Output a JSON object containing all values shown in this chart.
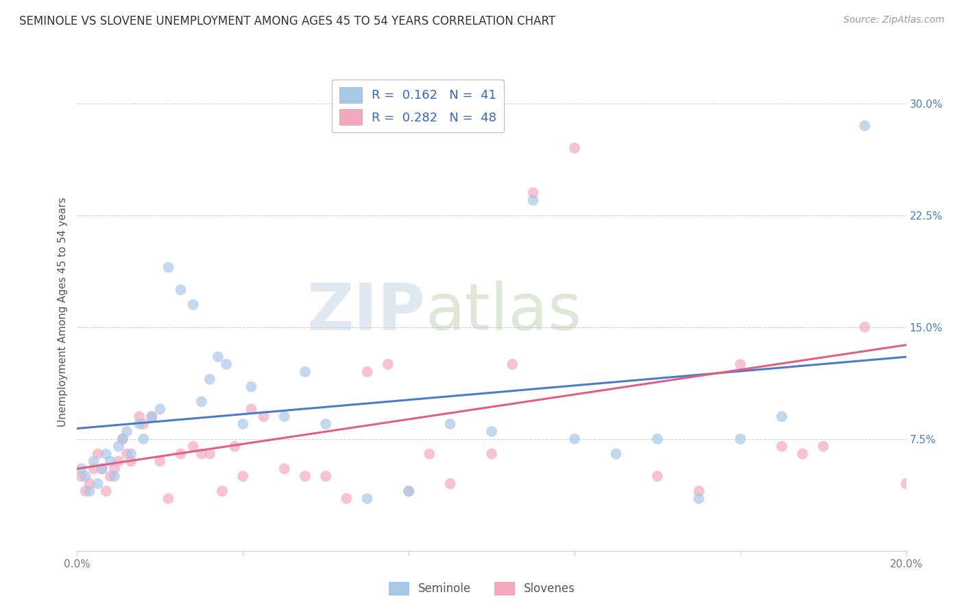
{
  "title": "SEMINOLE VS SLOVENE UNEMPLOYMENT AMONG AGES 45 TO 54 YEARS CORRELATION CHART",
  "source_text": "Source: ZipAtlas.com",
  "ylabel": "Unemployment Among Ages 45 to 54 years",
  "xlim": [
    0.0,
    0.2
  ],
  "ylim": [
    0.0,
    0.32
  ],
  "xtick_positions": [
    0.0,
    0.04,
    0.08,
    0.12,
    0.16,
    0.2
  ],
  "xticklabels": [
    "0.0%",
    "",
    "",
    "",
    "",
    "20.0%"
  ],
  "ytick_positions": [
    0.0,
    0.075,
    0.15,
    0.225,
    0.3
  ],
  "yticklabels": [
    "",
    "7.5%",
    "15.0%",
    "22.5%",
    "30.0%"
  ],
  "seminole_R": 0.162,
  "seminole_N": 41,
  "slovene_R": 0.282,
  "slovene_N": 48,
  "seminole_color": "#a8c8e8",
  "slovene_color": "#f4a8be",
  "seminole_line_color": "#4a7cc7",
  "slovene_line_color": "#e06080",
  "background_color": "#ffffff",
  "grid_color": "#cccccc",
  "watermark_zip": "ZIP",
  "watermark_atlas": "atlas",
  "legend_label_1": "Seminole",
  "legend_label_2": "Slovenes",
  "title_color": "#333333",
  "source_color": "#999999",
  "ylabel_color": "#555555",
  "tick_color": "#777777",
  "right_tick_color": "#4a7cc7",
  "seminole_x": [
    0.001,
    0.002,
    0.003,
    0.004,
    0.005,
    0.006,
    0.007,
    0.008,
    0.009,
    0.01,
    0.011,
    0.012,
    0.013,
    0.015,
    0.016,
    0.018,
    0.02,
    0.022,
    0.025,
    0.028,
    0.03,
    0.032,
    0.034,
    0.036,
    0.04,
    0.042,
    0.05,
    0.055,
    0.06,
    0.07,
    0.08,
    0.09,
    0.1,
    0.11,
    0.12,
    0.13,
    0.14,
    0.15,
    0.16,
    0.17,
    0.19
  ],
  "seminole_y": [
    0.055,
    0.05,
    0.04,
    0.06,
    0.045,
    0.055,
    0.065,
    0.06,
    0.05,
    0.07,
    0.075,
    0.08,
    0.065,
    0.085,
    0.075,
    0.09,
    0.095,
    0.19,
    0.175,
    0.165,
    0.1,
    0.115,
    0.13,
    0.125,
    0.085,
    0.11,
    0.09,
    0.12,
    0.085,
    0.035,
    0.04,
    0.085,
    0.08,
    0.235,
    0.075,
    0.065,
    0.075,
    0.035,
    0.075,
    0.09,
    0.285
  ],
  "slovene_x": [
    0.001,
    0.002,
    0.003,
    0.004,
    0.005,
    0.006,
    0.007,
    0.008,
    0.009,
    0.01,
    0.011,
    0.012,
    0.013,
    0.015,
    0.016,
    0.018,
    0.02,
    0.022,
    0.025,
    0.028,
    0.03,
    0.032,
    0.035,
    0.038,
    0.04,
    0.042,
    0.045,
    0.05,
    0.055,
    0.06,
    0.065,
    0.07,
    0.075,
    0.08,
    0.085,
    0.09,
    0.1,
    0.105,
    0.11,
    0.12,
    0.14,
    0.15,
    0.16,
    0.17,
    0.175,
    0.18,
    0.19,
    0.2
  ],
  "slovene_y": [
    0.05,
    0.04,
    0.045,
    0.055,
    0.065,
    0.055,
    0.04,
    0.05,
    0.055,
    0.06,
    0.075,
    0.065,
    0.06,
    0.09,
    0.085,
    0.09,
    0.06,
    0.035,
    0.065,
    0.07,
    0.065,
    0.065,
    0.04,
    0.07,
    0.05,
    0.095,
    0.09,
    0.055,
    0.05,
    0.05,
    0.035,
    0.12,
    0.125,
    0.04,
    0.065,
    0.045,
    0.065,
    0.125,
    0.24,
    0.27,
    0.05,
    0.04,
    0.125,
    0.07,
    0.065,
    0.07,
    0.15,
    0.045
  ],
  "blue_line_y0": 0.082,
  "blue_line_y1": 0.13,
  "pink_line_y0": 0.055,
  "pink_line_y1": 0.138
}
